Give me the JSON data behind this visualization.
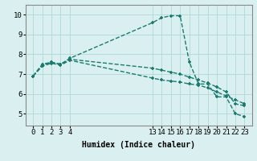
{
  "line1_x": [
    0,
    1,
    2,
    3,
    4,
    13,
    14,
    15,
    16,
    17,
    18,
    19,
    20,
    21,
    22,
    23
  ],
  "line1_y": [
    6.9,
    7.5,
    7.6,
    7.5,
    7.8,
    9.6,
    9.85,
    9.95,
    9.95,
    7.6,
    6.5,
    6.5,
    5.85,
    5.85,
    5.0,
    4.85
  ],
  "line2_x": [
    0,
    1,
    2,
    3,
    4,
    13,
    14,
    15,
    16,
    17,
    18,
    19,
    20,
    21,
    22,
    23
  ],
  "line2_y": [
    6.9,
    7.45,
    7.6,
    7.5,
    7.75,
    7.3,
    7.2,
    7.1,
    7.0,
    6.85,
    6.7,
    6.55,
    6.35,
    6.1,
    5.5,
    5.4
  ],
  "line3_x": [
    0,
    1,
    2,
    3,
    4,
    13,
    14,
    15,
    16,
    17,
    18,
    19,
    20,
    21,
    22,
    23
  ],
  "line3_y": [
    6.9,
    7.4,
    7.55,
    7.45,
    7.7,
    6.8,
    6.7,
    6.65,
    6.6,
    6.5,
    6.45,
    6.3,
    6.1,
    5.9,
    5.7,
    5.5
  ],
  "line_color": "#1a7a6e",
  "bg_color": "#daf0f0",
  "grid_color": "#b0d8d8",
  "xlabel": "Humidex (Indice chaleur)",
  "xticks": [
    0,
    1,
    2,
    3,
    4,
    13,
    14,
    15,
    16,
    17,
    18,
    19,
    20,
    21,
    22,
    23
  ],
  "yticks": [
    5,
    6,
    7,
    8,
    9,
    10
  ],
  "ylim": [
    4.4,
    10.5
  ],
  "xlim": [
    -0.8,
    23.8
  ],
  "xlabel_fontsize": 7,
  "tick_fontsize": 6.5,
  "linewidth": 1.0,
  "markersize": 3.5
}
